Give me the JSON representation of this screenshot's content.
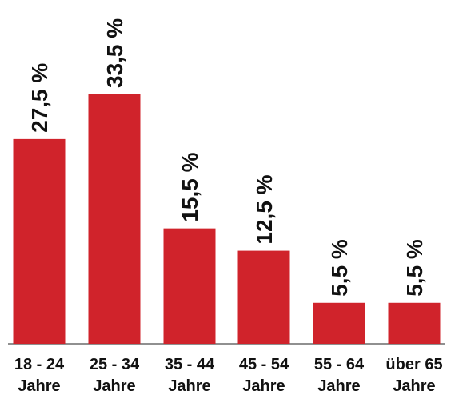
{
  "chart_data": {
    "type": "bar",
    "categories": [
      [
        "18 - 24",
        "Jahre"
      ],
      [
        "25 - 34",
        "Jahre"
      ],
      [
        "35 - 44",
        "Jahre"
      ],
      [
        "45 - 54",
        "Jahre"
      ],
      [
        "55 - 64",
        "Jahre"
      ],
      [
        "über 65",
        "Jahre"
      ]
    ],
    "values": [
      27.5,
      33.5,
      15.5,
      12.5,
      5.5,
      5.5
    ],
    "value_labels": [
      "27,5 %",
      "33,5 %",
      "15,5 %",
      "12,5 %",
      "5,5 %",
      "5,5 %"
    ],
    "title": "",
    "xlabel": "",
    "ylabel": "",
    "ylim": [
      0,
      33.5
    ],
    "grid": false,
    "legend": "none",
    "colors": {
      "bar": "#d0232b",
      "axis": "#6b6b6b",
      "text": "#111111"
    }
  }
}
